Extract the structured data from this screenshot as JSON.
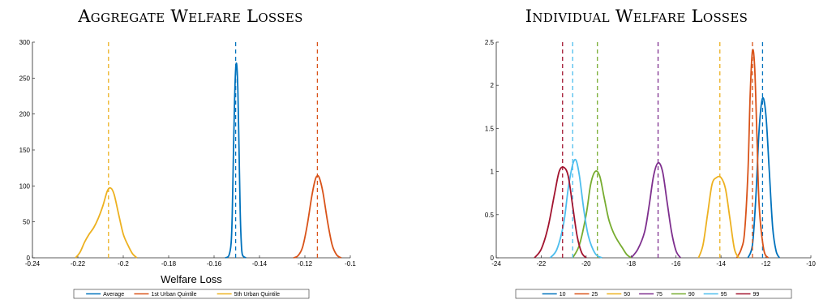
{
  "chart_data": [
    {
      "type": "line",
      "title": "Aggregate Welfare Losses",
      "xlabel": "Welfare Loss",
      "ylabel": "",
      "xlim": [
        -0.24,
        -0.1
      ],
      "ylim": [
        0,
        300
      ],
      "xticks": [
        -0.24,
        -0.22,
        -0.2,
        -0.18,
        -0.16,
        -0.14,
        -0.12,
        -0.1
      ],
      "xtick_labels": [
        "-0.24",
        "-0.22",
        "-0.2",
        "-0.18",
        "-0.16",
        "-0.14",
        "-0.12",
        "-0.1"
      ],
      "yticks": [
        0,
        50,
        100,
        150,
        200,
        250,
        300
      ],
      "ytick_labels": [
        "0",
        "50",
        "100",
        "150",
        "200",
        "250",
        "300"
      ],
      "grid": false,
      "legend_position": "bottom-outside",
      "series": [
        {
          "name": "Average",
          "color": "#0072BD",
          "mean": -0.1505,
          "x": [
            -0.155,
            -0.1535,
            -0.1525,
            -0.152,
            -0.1515,
            -0.151,
            -0.1505,
            -0.15,
            -0.1495,
            -0.149,
            -0.1485,
            -0.148,
            -0.1475,
            -0.146
          ],
          "y": [
            0,
            3,
            20,
            60,
            140,
            215,
            262,
            268,
            230,
            150,
            65,
            20,
            4,
            0
          ]
        },
        {
          "name": "1st Urban Quintile",
          "color": "#D95319",
          "mean": -0.1145,
          "x": [
            -0.125,
            -0.123,
            -0.121,
            -0.119,
            -0.117,
            -0.1155,
            -0.1145,
            -0.1135,
            -0.112,
            -0.11,
            -0.108,
            -0.106,
            -0.104
          ],
          "y": [
            0,
            3,
            15,
            45,
            85,
            108,
            114,
            110,
            90,
            50,
            18,
            4,
            0
          ]
        },
        {
          "name": "5th Urban Quintile",
          "color": "#EDB120",
          "mean": -0.2065,
          "x": [
            -0.221,
            -0.219,
            -0.217,
            -0.215,
            -0.213,
            -0.211,
            -0.209,
            -0.207,
            -0.2055,
            -0.204,
            -0.202,
            -0.2,
            -0.198,
            -0.196,
            -0.194
          ],
          "y": [
            0,
            8,
            22,
            33,
            42,
            55,
            72,
            93,
            97,
            88,
            60,
            33,
            18,
            6,
            0
          ]
        }
      ]
    },
    {
      "type": "line",
      "title": "Individual Welfare Losses",
      "xlabel": "",
      "ylabel": "",
      "xlim": [
        -24,
        -10
      ],
      "ylim": [
        0,
        2.5
      ],
      "xticks": [
        -24,
        -22,
        -20,
        -18,
        -16,
        -14,
        -12,
        -10
      ],
      "xtick_labels": [
        "-24",
        "-22",
        "-20",
        "-18",
        "-16",
        "-14",
        "-12",
        "-10"
      ],
      "yticks": [
        0,
        0.5,
        1,
        1.5,
        2,
        2.5
      ],
      "ytick_labels": [
        "0",
        "0.5",
        "1",
        "1.5",
        "2",
        "2.5"
      ],
      "grid": false,
      "legend_position": "bottom-outside",
      "series": [
        {
          "name": "10",
          "color": "#0072BD",
          "mean": -12.15,
          "x": [
            -12.8,
            -12.6,
            -12.45,
            -12.3,
            -12.15,
            -12.0,
            -11.85,
            -11.7,
            -11.55,
            -11.4
          ],
          "y": [
            0,
            0.15,
            0.7,
            1.5,
            1.85,
            1.65,
            1.0,
            0.35,
            0.08,
            0
          ]
        },
        {
          "name": "25",
          "color": "#D95319",
          "mean": -12.6,
          "x": [
            -13.3,
            -13.1,
            -12.95,
            -12.8,
            -12.7,
            -12.6,
            -12.5,
            -12.4,
            -12.3,
            -12.1,
            -11.9
          ],
          "y": [
            0,
            0.1,
            0.3,
            1.0,
            1.9,
            2.4,
            2.2,
            1.4,
            0.6,
            0.1,
            0
          ]
        },
        {
          "name": "50",
          "color": "#EDB120",
          "mean": -14.05,
          "x": [
            -15.0,
            -14.8,
            -14.6,
            -14.4,
            -14.2,
            -14.0,
            -13.8,
            -13.6,
            -13.4,
            -13.2
          ],
          "y": [
            0,
            0.15,
            0.5,
            0.85,
            0.93,
            0.93,
            0.8,
            0.45,
            0.1,
            0
          ]
        },
        {
          "name": "75",
          "color": "#7E2F8E",
          "mean": -16.8,
          "x": [
            -18.0,
            -17.7,
            -17.4,
            -17.2,
            -17.0,
            -16.8,
            -16.6,
            -16.4,
            -16.2,
            -16.0,
            -15.8
          ],
          "y": [
            0,
            0.1,
            0.3,
            0.6,
            0.95,
            1.1,
            1.0,
            0.65,
            0.3,
            0.08,
            0
          ]
        },
        {
          "name": "90",
          "color": "#77AC30",
          "mean": -19.5,
          "x": [
            -20.6,
            -20.3,
            -20.0,
            -19.8,
            -19.6,
            -19.4,
            -19.2,
            -19.0,
            -18.8,
            -18.6,
            -18.4,
            -18.2,
            -18.0
          ],
          "y": [
            0,
            0.15,
            0.5,
            0.85,
            1.0,
            0.95,
            0.7,
            0.45,
            0.3,
            0.2,
            0.12,
            0.04,
            0
          ]
        },
        {
          "name": "95",
          "color": "#4DBEEE",
          "mean": -20.6,
          "x": [
            -21.6,
            -21.3,
            -21.0,
            -20.8,
            -20.6,
            -20.45,
            -20.3,
            -20.1,
            -19.9,
            -19.6,
            -19.3
          ],
          "y": [
            0,
            0.1,
            0.4,
            0.8,
            1.08,
            1.13,
            0.95,
            0.55,
            0.25,
            0.05,
            0
          ]
        },
        {
          "name": "99",
          "color": "#A2142F",
          "mean": -21.05,
          "x": [
            -22.3,
            -22.0,
            -21.7,
            -21.4,
            -21.2,
            -21.0,
            -20.8,
            -20.6,
            -20.4,
            -20.2,
            -20.0
          ],
          "y": [
            0,
            0.1,
            0.35,
            0.75,
            1.0,
            1.05,
            0.95,
            0.6,
            0.25,
            0.06,
            0
          ]
        }
      ]
    }
  ]
}
